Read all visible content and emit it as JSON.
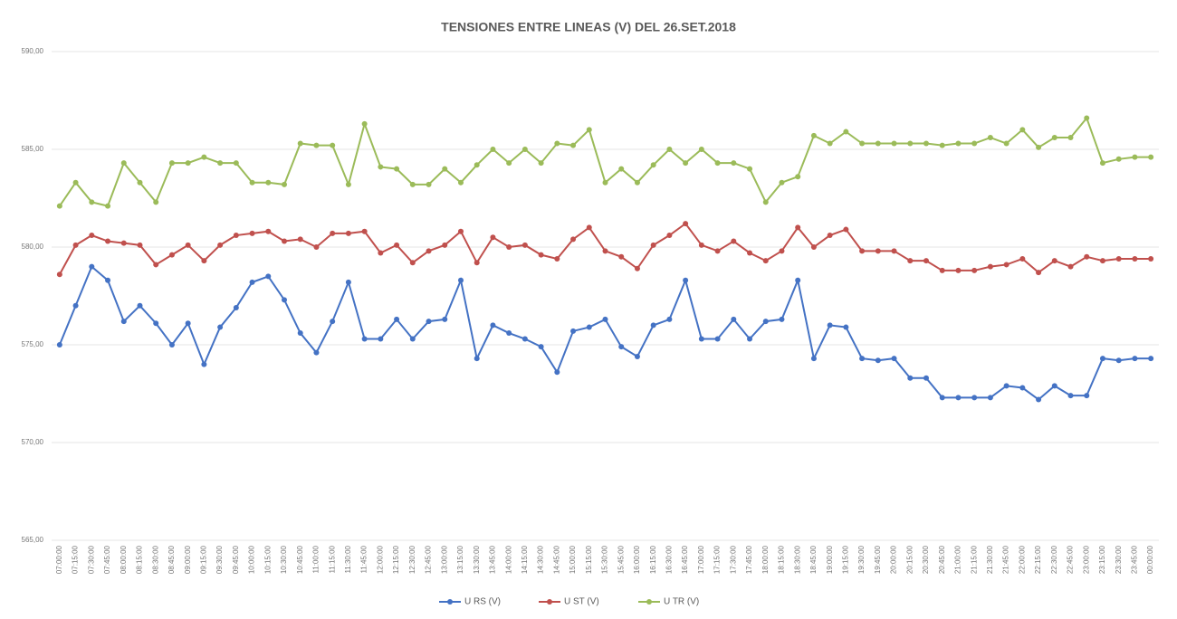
{
  "chart_data": {
    "type": "line",
    "title": "TENSIONES    ENTRE LINEAS  (V) DEL 26.SET.2018",
    "categories": [
      "07:00:00",
      "07:15:00",
      "07:30:00",
      "07:45:00",
      "08:00:00",
      "08:15:00",
      "08:30:00",
      "08:45:00",
      "09:00:00",
      "09:15:00",
      "09:30:00",
      "09:45:00",
      "10:00:00",
      "10:15:00",
      "10:30:00",
      "10:45:00",
      "11:00:00",
      "11:15:00",
      "11:30:00",
      "11:45:00",
      "12:00:00",
      "12:15:00",
      "12:30:00",
      "12:45:00",
      "13:00:00",
      "13:15:00",
      "13:30:00",
      "13:45:00",
      "14:00:00",
      "14:15:00",
      "14:30:00",
      "14:45:00",
      "15:00:00",
      "15:15:00",
      "15:30:00",
      "15:45:00",
      "16:00:00",
      "16:15:00",
      "16:30:00",
      "16:45:00",
      "17:00:00",
      "17:15:00",
      "17:30:00",
      "17:45:00",
      "18:00:00",
      "18:15:00",
      "18:30:00",
      "18:45:00",
      "19:00:00",
      "19:15:00",
      "19:30:00",
      "19:45:00",
      "20:00:00",
      "20:15:00",
      "20:30:00",
      "20:45:00",
      "21:00:00",
      "21:15:00",
      "21:30:00",
      "21:45:00",
      "22:00:00",
      "22:15:00",
      "22:30:00",
      "22:45:00",
      "23:00:00",
      "23:15:00",
      "23:30:00",
      "23:45:00",
      "00:00:00"
    ],
    "series": [
      {
        "name": "U RS (V)",
        "color": "#4472c4",
        "values": [
          575.0,
          577.0,
          579.0,
          578.3,
          576.2,
          577.0,
          576.1,
          575.0,
          576.1,
          574.0,
          575.9,
          576.9,
          578.2,
          578.5,
          577.3,
          575.6,
          574.6,
          576.2,
          578.2,
          575.3,
          575.3,
          576.3,
          575.3,
          576.2,
          576.3,
          578.3,
          574.3,
          576.0,
          575.6,
          575.3,
          574.9,
          573.6,
          575.7,
          575.9,
          576.3,
          574.9,
          574.4,
          576.0,
          576.3,
          578.3,
          575.3,
          575.3,
          576.3,
          575.3,
          576.2,
          576.3,
          578.3,
          574.3,
          576.0,
          575.9,
          574.3,
          574.2,
          574.3,
          573.3,
          573.3,
          572.3,
          572.3,
          572.3,
          572.3,
          572.9,
          572.8,
          572.2,
          572.9,
          572.4,
          572.4,
          574.3,
          574.2,
          574.3,
          574.3
        ]
      },
      {
        "name": "U ST (V)",
        "color": "#c0504d",
        "values": [
          578.6,
          580.1,
          580.6,
          580.3,
          580.2,
          580.1,
          579.1,
          579.6,
          580.1,
          579.3,
          580.1,
          580.6,
          580.7,
          580.8,
          580.3,
          580.4,
          580.0,
          580.7,
          580.7,
          580.8,
          579.7,
          580.1,
          579.2,
          579.8,
          580.1,
          580.8,
          579.2,
          580.5,
          580.0,
          580.1,
          579.6,
          579.4,
          580.4,
          581.0,
          579.8,
          579.5,
          578.9,
          580.1,
          580.6,
          581.2,
          580.1,
          579.8,
          580.3,
          579.7,
          579.3,
          579.8,
          581.0,
          580.0,
          580.6,
          580.9,
          579.8,
          579.8,
          579.8,
          579.3,
          579.3,
          578.8,
          578.8,
          578.8,
          579.0,
          579.1,
          579.4,
          578.7,
          579.3,
          579.0,
          579.5,
          579.3,
          579.4,
          579.4,
          579.4
        ]
      },
      {
        "name": "U TR (V)",
        "color": "#9bbb59",
        "values": [
          582.1,
          583.3,
          582.3,
          582.1,
          584.3,
          583.3,
          582.3,
          584.3,
          584.3,
          584.6,
          584.3,
          584.3,
          583.3,
          583.3,
          583.2,
          585.3,
          585.2,
          585.2,
          583.2,
          586.3,
          584.1,
          584.0,
          583.2,
          583.2,
          584.0,
          583.3,
          584.2,
          585.0,
          584.3,
          585.0,
          584.3,
          585.3,
          585.2,
          586.0,
          583.3,
          584.0,
          583.3,
          584.2,
          585.0,
          584.3,
          585.0,
          584.3,
          584.3,
          584.0,
          582.3,
          583.3,
          583.6,
          585.7,
          585.3,
          585.9,
          585.3,
          585.3,
          585.3,
          585.3,
          585.3,
          585.2,
          585.3,
          585.3,
          585.6,
          585.3,
          586.0,
          585.1,
          585.6,
          585.6,
          586.6,
          584.3,
          584.5,
          584.6,
          584.6
        ]
      }
    ],
    "ylim": [
      565,
      590
    ],
    "yticks": [
      {
        "value": 565,
        "label": "565,00"
      },
      {
        "value": 570,
        "label": "570,00"
      },
      {
        "value": 575,
        "label": "575,00"
      },
      {
        "value": 580,
        "label": "580,00"
      },
      {
        "value": 585,
        "label": "585,00"
      },
      {
        "value": 590,
        "label": "590,00"
      }
    ],
    "grid": true,
    "legend": "bottom"
  }
}
